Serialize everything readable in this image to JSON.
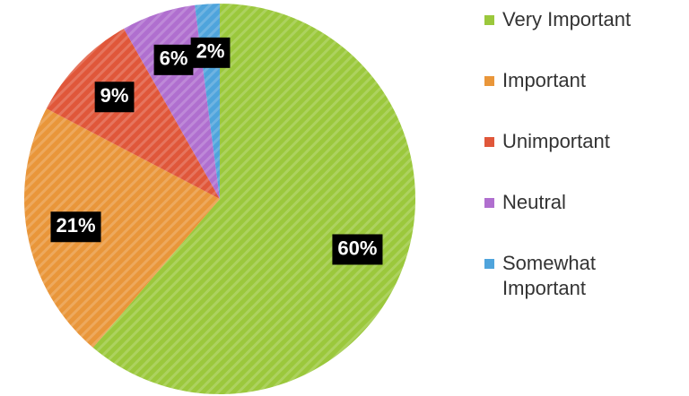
{
  "chart_data": {
    "type": "pie",
    "categories": [
      "Very Important",
      "Important",
      "Unimportant",
      "Neutral",
      "Somewhat Important"
    ],
    "values": [
      60,
      21,
      9,
      6,
      2
    ],
    "value_labels": [
      "60%",
      "21%",
      "9%",
      "6%",
      "2%"
    ],
    "colors": [
      "#9bc83c",
      "#e9963a",
      "#e0573a",
      "#b06fcf",
      "#4fa4dc"
    ],
    "legend": "right"
  }
}
